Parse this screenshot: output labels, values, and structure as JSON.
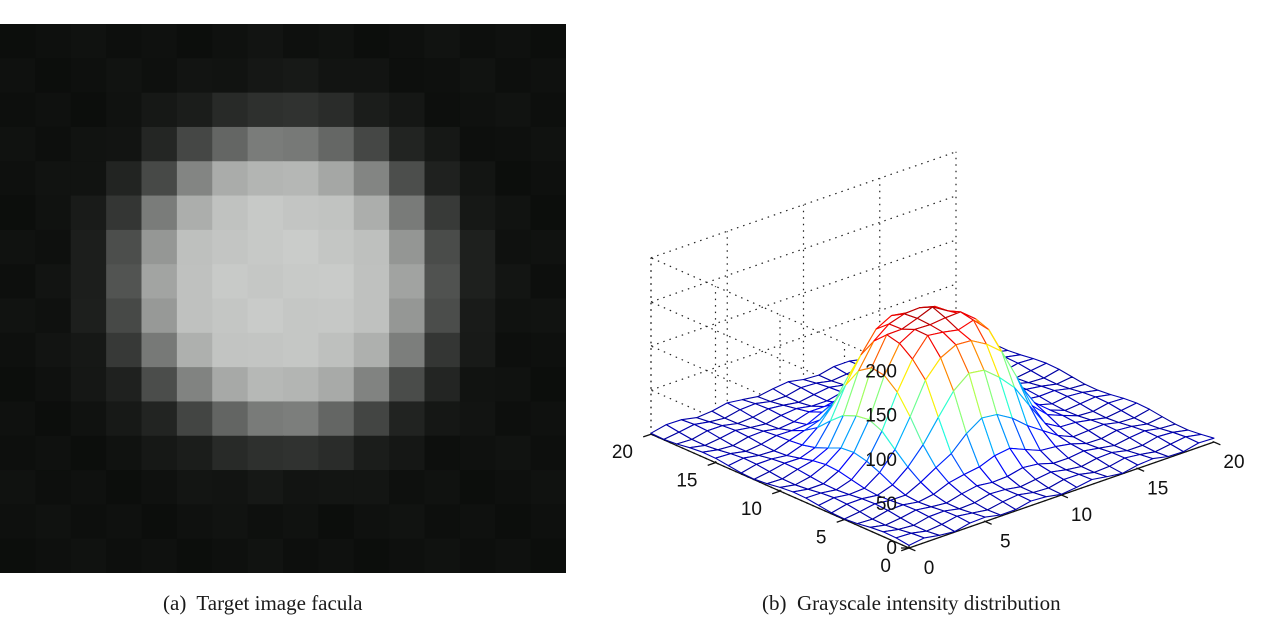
{
  "captions": {
    "a": "(a)  Target image facula",
    "b": "(b)  Grayscale intensity distribution"
  },
  "chart_data": [
    {
      "type": "heatmap",
      "title": "",
      "grid_size": [
        16,
        16
      ],
      "colormap": "gray",
      "value_range": [
        0,
        255
      ],
      "spot_center": [
        7.5,
        7.0
      ],
      "spot_radius_px": 4.2,
      "peak_intensity": 200,
      "background_intensity": 14
    },
    {
      "type": "surface",
      "title": "",
      "xlabel": "",
      "ylabel": "",
      "zlabel": "",
      "x_range": [
        0,
        20
      ],
      "y_range": [
        0,
        20
      ],
      "zlim": [
        0,
        200
      ],
      "x_ticks": [
        0,
        5,
        10,
        15,
        20
      ],
      "y_ticks": [
        0,
        5,
        10,
        15,
        20
      ],
      "z_ticks": [
        0,
        50,
        100,
        150,
        200
      ],
      "grid": true,
      "colormap": "jet",
      "peak_center": [
        9.5,
        9.5
      ],
      "peak_value": 150,
      "plateau_radius": 4.2,
      "edge_width": 1.4,
      "background_value": 3
    }
  ]
}
